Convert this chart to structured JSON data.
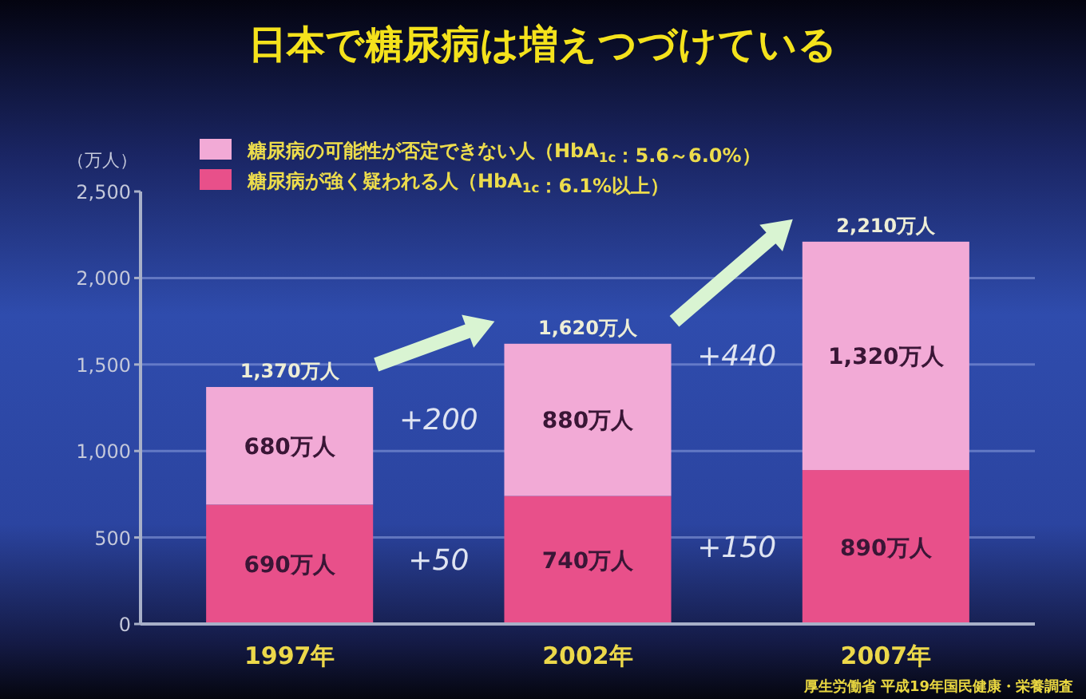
{
  "chart_data": {
    "type": "bar",
    "stacked": true,
    "title": "日本で糖尿病は増えつづけている",
    "ylabel": "（万人）",
    "categories": [
      "1997年",
      "2002年",
      "2007年"
    ],
    "series": [
      {
        "name": "糖尿病が強く疑われる人（HbA$_{1c}$：6.1%以上）",
        "color": "#e8508a",
        "values": [
          690,
          740,
          890
        ],
        "value_labels": [
          "690万人",
          "740万人",
          "890万人"
        ]
      },
      {
        "name": "糖尿病の可能性が否定できない人（HbA$_{1c}$：5.6～6.0%）",
        "color": "#f2aad6",
        "values": [
          680,
          880,
          1320
        ],
        "value_labels": [
          "680万人",
          "880万人",
          "1,320万人"
        ]
      }
    ],
    "totals": [
      "1,370万人",
      "1,620万人",
      "2,210万人"
    ],
    "ylim": [
      0,
      2500
    ],
    "yticks": [
      0,
      500,
      {
        "value": 1000,
        "label": "1,000"
      },
      {
        "value": 1500,
        "label": "1,500"
      },
      {
        "value": 2000,
        "label": "2,000"
      },
      {
        "value": 2500,
        "label": "2,500"
      }
    ],
    "grid": "y",
    "legend": "top left",
    "annotations": [
      "+200",
      "+50",
      "+440",
      "+150",
      "厚生労働省 平成19年国民健康・栄養調査"
    ]
  }
}
